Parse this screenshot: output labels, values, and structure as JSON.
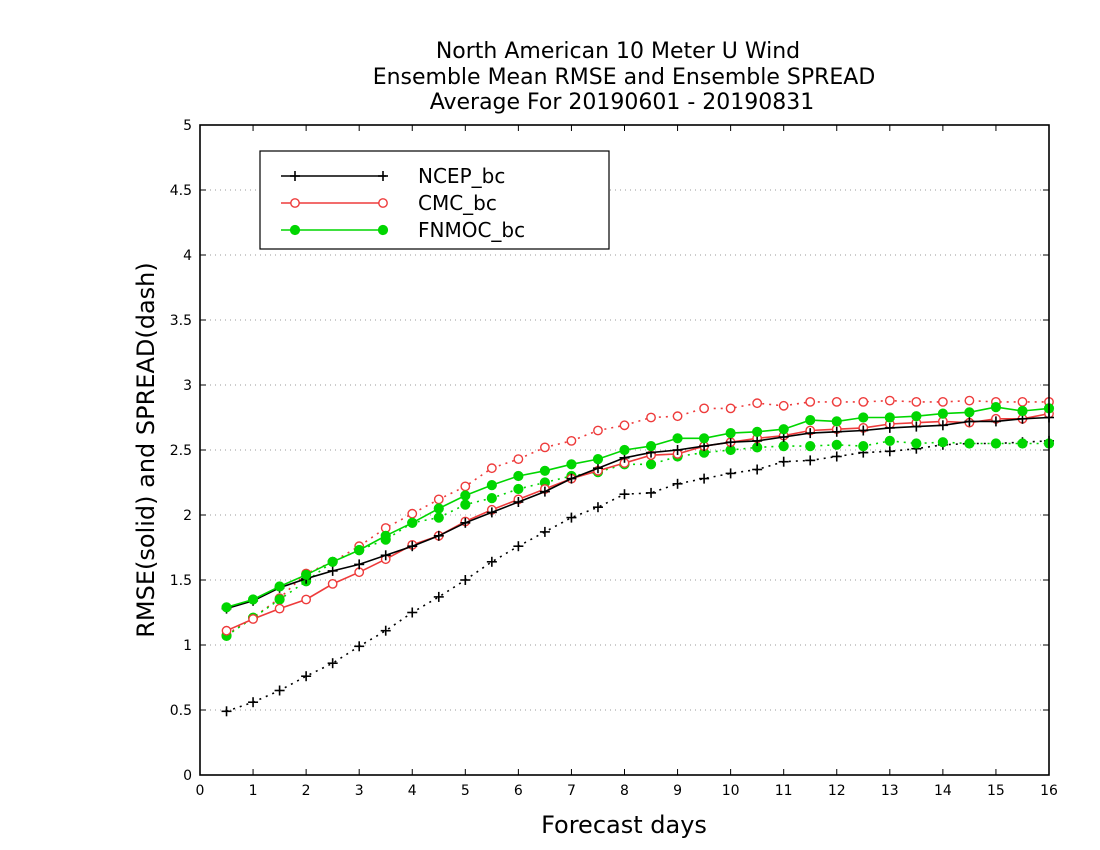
{
  "chart_data": {
    "type": "line",
    "title": [
      "North American 10 Meter U Wind",
      "Ensemble Mean RMSE and Ensemble SPREAD",
      "Average For 20190601 - 20190831"
    ],
    "xlabel": "Forecast days",
    "ylabel": "RMSE(solid) and SPREAD(dash)",
    "xlim": [
      0,
      16
    ],
    "ylim": [
      0,
      5
    ],
    "xticks": [
      0,
      1,
      2,
      3,
      4,
      5,
      6,
      7,
      8,
      9,
      10,
      11,
      12,
      13,
      14,
      15,
      16
    ],
    "yticks": [
      0,
      0.5,
      1,
      1.5,
      2,
      2.5,
      3,
      3.5,
      4,
      4.5,
      5
    ],
    "ytick_labels": [
      "0",
      "0.5",
      "1",
      "1.5",
      "2",
      "2.5",
      "3",
      "3.5",
      "4",
      "4.5",
      "5"
    ],
    "grid": "horizontal-dotted",
    "legend_position": "top-left",
    "x": [
      0.5,
      1,
      1.5,
      2,
      2.5,
      3,
      3.5,
      4,
      4.5,
      5,
      5.5,
      6,
      6.5,
      7,
      7.5,
      8,
      8.5,
      9,
      9.5,
      10,
      10.5,
      11,
      11.5,
      12,
      12.5,
      13,
      13.5,
      14,
      14.5,
      15,
      15.5,
      16
    ],
    "series": [
      {
        "name": "NCEP_bc",
        "color": "#000000",
        "marker": "plus",
        "kind": "rmse",
        "values": [
          1.28,
          1.34,
          1.44,
          1.51,
          1.57,
          1.62,
          1.69,
          1.76,
          1.84,
          1.94,
          2.02,
          2.1,
          2.18,
          2.28,
          2.36,
          2.44,
          2.48,
          2.5,
          2.53,
          2.56,
          2.57,
          2.6,
          2.63,
          2.64,
          2.65,
          2.67,
          2.68,
          2.69,
          2.72,
          2.72,
          2.74,
          2.75
        ]
      },
      {
        "name": "NCEP_bc",
        "color": "#000000",
        "marker": "plus",
        "kind": "spread",
        "values": [
          0.49,
          0.56,
          0.65,
          0.76,
          0.86,
          0.99,
          1.11,
          1.25,
          1.37,
          1.5,
          1.64,
          1.76,
          1.87,
          1.98,
          2.06,
          2.16,
          2.17,
          2.24,
          2.28,
          2.32,
          2.35,
          2.41,
          2.42,
          2.45,
          2.48,
          2.49,
          2.51,
          2.54,
          2.55,
          2.55,
          2.56,
          2.57
        ]
      },
      {
        "name": "CMC_bc",
        "color": "#ee3b3b",
        "marker": "open-circle",
        "kind": "rmse",
        "values": [
          1.11,
          1.2,
          1.28,
          1.35,
          1.47,
          1.56,
          1.66,
          1.77,
          1.84,
          1.95,
          2.04,
          2.12,
          2.2,
          2.28,
          2.34,
          2.4,
          2.46,
          2.47,
          2.53,
          2.56,
          2.59,
          2.61,
          2.65,
          2.66,
          2.67,
          2.7,
          2.71,
          2.72,
          2.71,
          2.74,
          2.74,
          2.78
        ]
      },
      {
        "name": "CMC_bc",
        "color": "#ee3b3b",
        "marker": "open-circle",
        "kind": "spread",
        "values": [
          1.08,
          1.21,
          1.36,
          1.55,
          1.64,
          1.76,
          1.9,
          2.01,
          2.12,
          2.22,
          2.36,
          2.43,
          2.52,
          2.57,
          2.65,
          2.69,
          2.75,
          2.76,
          2.82,
          2.82,
          2.86,
          2.84,
          2.87,
          2.87,
          2.87,
          2.88,
          2.87,
          2.87,
          2.88,
          2.87,
          2.87,
          2.87
        ]
      },
      {
        "name": "FNMOC_bc",
        "color": "#00d600",
        "marker": "filled-circle",
        "kind": "rmse",
        "values": [
          1.29,
          1.35,
          1.45,
          1.54,
          1.64,
          1.73,
          1.84,
          1.94,
          2.05,
          2.15,
          2.23,
          2.3,
          2.34,
          2.39,
          2.43,
          2.5,
          2.53,
          2.59,
          2.59,
          2.63,
          2.64,
          2.66,
          2.73,
          2.72,
          2.75,
          2.75,
          2.76,
          2.78,
          2.79,
          2.83,
          2.8,
          2.82
        ]
      },
      {
        "name": "FNMOC_bc",
        "color": "#00d600",
        "marker": "filled-circle",
        "kind": "spread",
        "values": [
          1.07,
          1.21,
          1.35,
          1.49,
          1.64,
          1.73,
          1.81,
          1.94,
          1.98,
          2.08,
          2.13,
          2.2,
          2.25,
          2.3,
          2.33,
          2.39,
          2.39,
          2.45,
          2.48,
          2.5,
          2.52,
          2.53,
          2.53,
          2.54,
          2.53,
          2.57,
          2.55,
          2.56,
          2.55,
          2.55,
          2.55,
          2.55
        ]
      }
    ],
    "legend": [
      {
        "name": "NCEP_bc",
        "color": "#000000",
        "marker": "plus"
      },
      {
        "name": "CMC_bc",
        "color": "#ee3b3b",
        "marker": "open-circle"
      },
      {
        "name": "FNMOC_bc",
        "color": "#00d600",
        "marker": "filled-circle"
      }
    ]
  }
}
